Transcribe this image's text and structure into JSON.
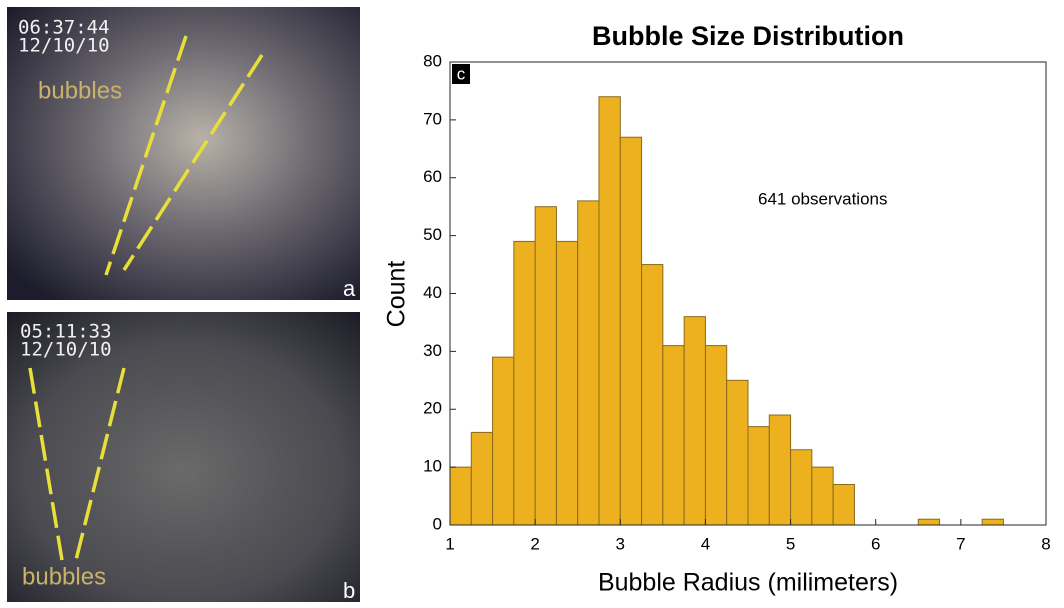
{
  "panels": [
    {
      "label": "a",
      "timestamp": "06:37:44",
      "date": "12/10/10",
      "annotation": "bubbles"
    },
    {
      "label": "b",
      "timestamp": "05:11:33",
      "date": "12/10/10",
      "annotation": "bubbles"
    }
  ],
  "chart_data": {
    "type": "histogram",
    "panel_label": "c",
    "title": "Bubble Size Distribution",
    "x_label": "Bubble Radius (milimeters)",
    "y_label": "Count",
    "annotation": "641 observations",
    "bins": [
      1,
      1.25,
      1.5,
      1.75,
      2,
      2.25,
      2.5,
      2.75,
      3,
      3.25,
      3.5,
      3.75,
      4,
      4.25,
      4.5,
      4.75,
      5,
      5.25,
      5.5,
      5.75,
      6,
      6.25,
      6.5,
      6.75,
      7,
      7.25,
      7.5,
      7.75,
      8
    ],
    "values": [
      10,
      16,
      29,
      49,
      55,
      49,
      56,
      74,
      67,
      45,
      31,
      36,
      31,
      25,
      17,
      19,
      13,
      10,
      7,
      0,
      0,
      0,
      1,
      0,
      0,
      1,
      0,
      0
    ],
    "color": "#edb120",
    "edge_color": "#8a6a1a",
    "xlim": [
      1,
      8
    ],
    "ylim": [
      0,
      80
    ],
    "xticks": [
      1,
      2,
      3,
      4,
      5,
      6,
      7,
      8
    ],
    "yticks": [
      0,
      10,
      20,
      30,
      40,
      50,
      60,
      70,
      80
    ],
    "grid": false
  }
}
